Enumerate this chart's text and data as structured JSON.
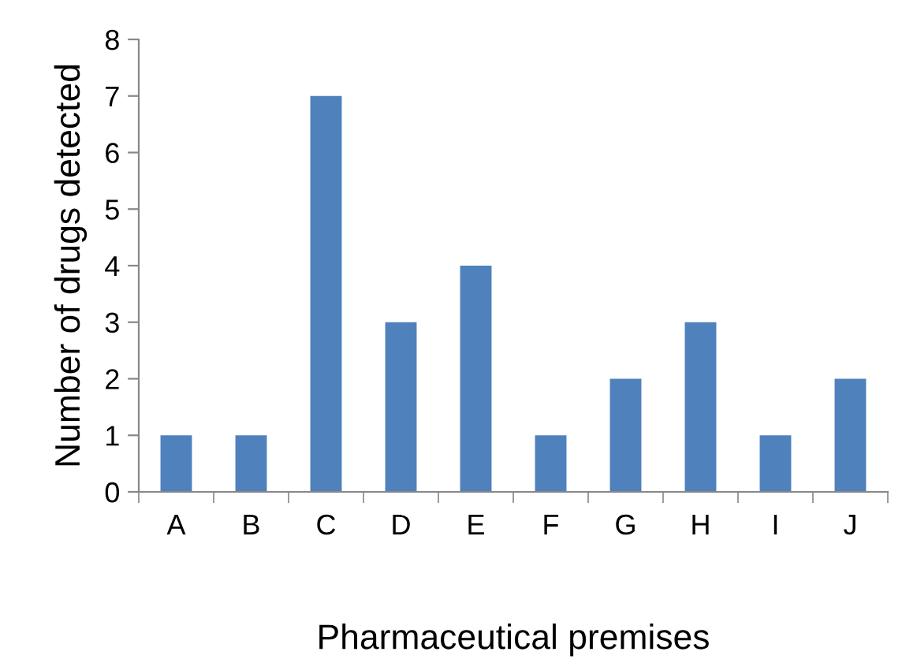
{
  "chart_data": {
    "type": "bar",
    "xlabel": "Pharmaceutical premises",
    "ylabel": "Number of drugs detected",
    "categories": [
      "A",
      "B",
      "C",
      "D",
      "E",
      "F",
      "G",
      "H",
      "I",
      "J"
    ],
    "values": [
      1,
      1,
      7,
      3,
      4,
      1,
      2,
      3,
      1,
      2
    ],
    "color": "#4f81bd",
    "ylim": [
      0,
      8
    ],
    "yticks": [
      0,
      1,
      2,
      3,
      4,
      5,
      6,
      7,
      8
    ],
    "grid": false,
    "legend": false
  }
}
